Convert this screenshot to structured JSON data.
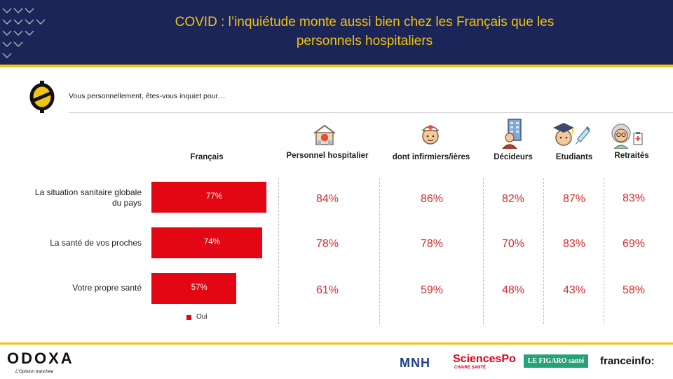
{
  "header": {
    "title_line1": "COVID : l’inquiétude monte aussi bien chez les Français que les",
    "title_line2": "personnels hospitaliers",
    "bg_color": "#1c2558",
    "title_color": "#f1c40f"
  },
  "question": "Vous personnellement,  êtes-vous inquiet pour…",
  "columns": [
    {
      "label": "Français",
      "icon": "none"
    },
    {
      "label": "Personnel hospitalier",
      "icon": "hospital-icon"
    },
    {
      "label": "dont infirmiers/ières",
      "icon": "nurse-icon"
    },
    {
      "label": "Décideurs",
      "icon": "decision-maker-icon"
    },
    {
      "label": "Etudiants",
      "icon": "student-icon"
    },
    {
      "label": "Retraités",
      "icon": "retiree-icon"
    }
  ],
  "chart_data": {
    "type": "bar",
    "orientation": "horizontal",
    "categories": [
      "La situation sanitaire globale du pays",
      "La santé de vos proches",
      "Votre propre santé"
    ],
    "category_lines": [
      [
        "La situation sanitaire globale",
        "du pays"
      ],
      [
        "La santé de vos proches"
      ],
      [
        "Votre propre santé"
      ]
    ],
    "series": [
      {
        "name": "Oui",
        "group": "Français",
        "values": [
          77,
          74,
          57
        ],
        "labels": [
          "77%",
          "74%",
          "57%"
        ],
        "color": "#e30613"
      }
    ],
    "xlim": [
      0,
      100
    ],
    "legend": "bottom",
    "grid": false
  },
  "table": {
    "rows": [
      [
        "84%",
        "86%",
        "82%",
        "87%",
        "83%"
      ],
      [
        "78%",
        "78%",
        "70%",
        "83%",
        "69%"
      ],
      [
        "61%",
        "59%",
        "48%",
        "43%",
        "58%"
      ]
    ],
    "value_color": "#d42d2d"
  },
  "footer": {
    "brand": "ODOXA",
    "tagline": "L’Opinion tranchée",
    "partners": [
      "MNH",
      "SciencesPo",
      "CHAIRE SANTÉ",
      "LE FIGARO santé",
      "franceinfo:"
    ]
  }
}
